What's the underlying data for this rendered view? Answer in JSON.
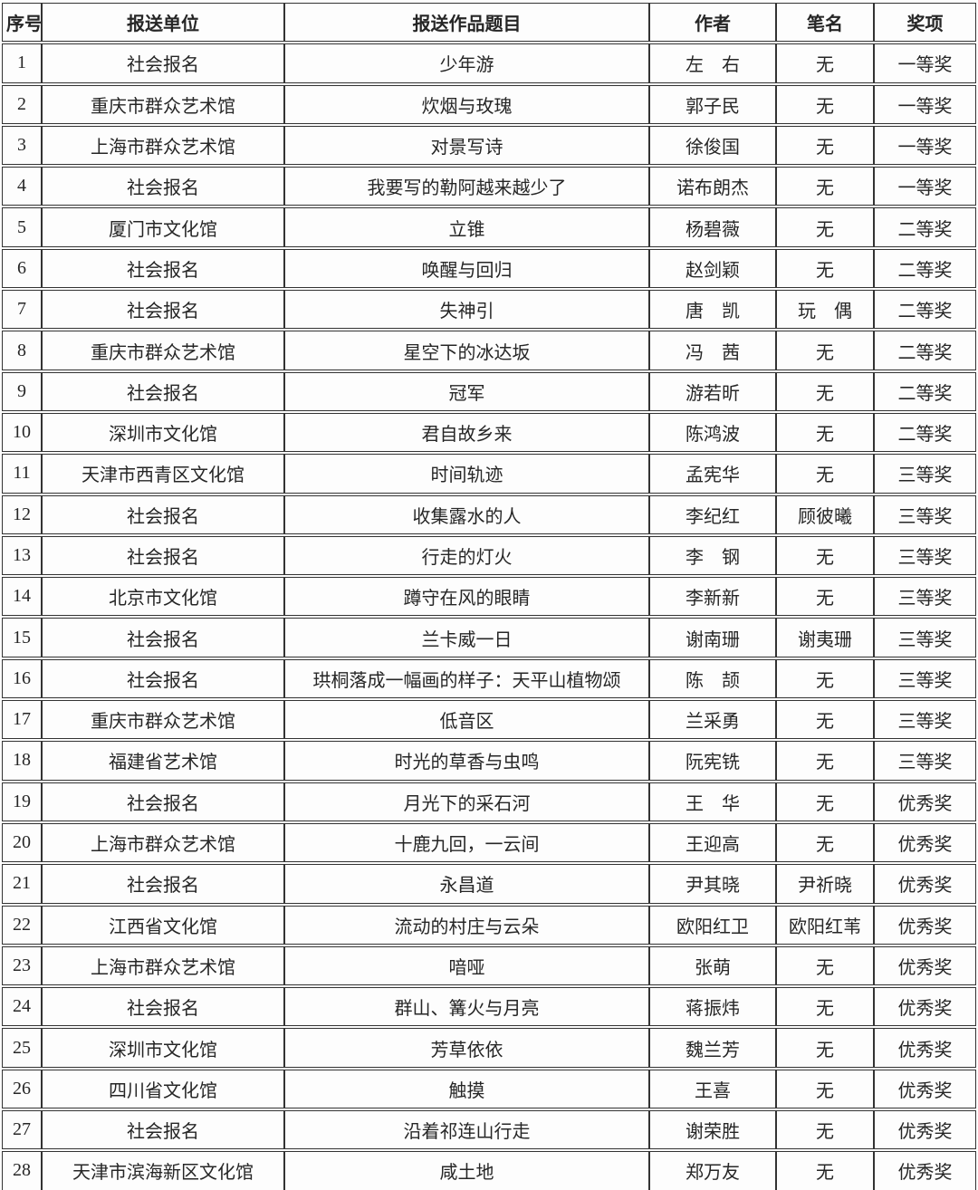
{
  "page": {
    "background": "#fdfdfd",
    "border_color": "#333333",
    "text_color": "#262626"
  },
  "table": {
    "columns": [
      {
        "key": "no",
        "label": "序号"
      },
      {
        "key": "org",
        "label": "报送单位"
      },
      {
        "key": "title",
        "label": "报送作品题目"
      },
      {
        "key": "author",
        "label": "作者"
      },
      {
        "key": "pen",
        "label": "笔名"
      },
      {
        "key": "award",
        "label": "奖项"
      }
    ],
    "rows": [
      {
        "no": "1",
        "org": "社会报名",
        "title": "少年游",
        "author": "左　右",
        "pen": "无",
        "award": "一等奖"
      },
      {
        "no": "2",
        "org": "重庆市群众艺术馆",
        "title": "炊烟与玫瑰",
        "author": "郭子民",
        "pen": "无",
        "award": "一等奖"
      },
      {
        "no": "3",
        "org": "上海市群众艺术馆",
        "title": "对景写诗",
        "author": "徐俊国",
        "pen": "无",
        "award": "一等奖"
      },
      {
        "no": "4",
        "org": "社会报名",
        "title": "我要写的勒阿越来越少了",
        "author": "诺布朗杰",
        "pen": "无",
        "award": "一等奖"
      },
      {
        "no": "5",
        "org": "厦门市文化馆",
        "title": "立锥",
        "author": "杨碧薇",
        "pen": "无",
        "award": "二等奖"
      },
      {
        "no": "6",
        "org": "社会报名",
        "title": "唤醒与回归",
        "author": "赵剑颖",
        "pen": "无",
        "award": "二等奖"
      },
      {
        "no": "7",
        "org": "社会报名",
        "title": "失神引",
        "author": "唐　凯",
        "pen": "玩　偶",
        "award": "二等奖"
      },
      {
        "no": "8",
        "org": "重庆市群众艺术馆",
        "title": "星空下的冰达坂",
        "author": "冯　茜",
        "pen": "无",
        "award": "二等奖"
      },
      {
        "no": "9",
        "org": "社会报名",
        "title": "冠军",
        "author": "游若昕",
        "pen": "无",
        "award": "二等奖"
      },
      {
        "no": "10",
        "org": "深圳市文化馆",
        "title": "君自故乡来",
        "author": "陈鸿波",
        "pen": "无",
        "award": "二等奖"
      },
      {
        "no": "11",
        "org": "天津市西青区文化馆",
        "title": "时间轨迹",
        "author": "孟宪华",
        "pen": "无",
        "award": "三等奖"
      },
      {
        "no": "12",
        "org": "社会报名",
        "title": "收集露水的人",
        "author": "李纪红",
        "pen": "顾彼曦",
        "award": "三等奖"
      },
      {
        "no": "13",
        "org": "社会报名",
        "title": "行走的灯火",
        "author": "李　钢",
        "pen": "无",
        "award": "三等奖"
      },
      {
        "no": "14",
        "org": "北京市文化馆",
        "title": "蹲守在风的眼睛",
        "author": "李新新",
        "pen": "无",
        "award": "三等奖"
      },
      {
        "no": "15",
        "org": "社会报名",
        "title": "兰卡威一日",
        "author": "谢南珊",
        "pen": "谢夷珊",
        "award": "三等奖"
      },
      {
        "no": "16",
        "org": "社会报名",
        "title": "珙桐落成一幅画的样子：天平山植物颂",
        "author": "陈　颉",
        "pen": "无",
        "award": "三等奖"
      },
      {
        "no": "17",
        "org": "重庆市群众艺术馆",
        "title": "低音区",
        "author": "兰采勇",
        "pen": "无",
        "award": "三等奖"
      },
      {
        "no": "18",
        "org": "福建省艺术馆",
        "title": "时光的草香与虫鸣",
        "author": "阮宪铣",
        "pen": "无",
        "award": "三等奖"
      },
      {
        "no": "19",
        "org": "社会报名",
        "title": "月光下的采石河",
        "author": "王　华",
        "pen": "无",
        "award": "优秀奖"
      },
      {
        "no": "20",
        "org": "上海市群众艺术馆",
        "title": "十鹿九回，一云间",
        "author": "王迎高",
        "pen": "无",
        "award": "优秀奖"
      },
      {
        "no": "21",
        "org": "社会报名",
        "title": "永昌道",
        "author": "尹其晓",
        "pen": "尹祈晓",
        "award": "优秀奖"
      },
      {
        "no": "22",
        "org": "江西省文化馆",
        "title": "流动的村庄与云朵",
        "author": "欧阳红卫",
        "pen": "欧阳红苇",
        "award": "优秀奖"
      },
      {
        "no": "23",
        "org": "上海市群众艺术馆",
        "title": "喑哑",
        "author": "张萌",
        "pen": "无",
        "award": "优秀奖"
      },
      {
        "no": "24",
        "org": "社会报名",
        "title": "群山、篝火与月亮",
        "author": "蒋振炜",
        "pen": "无",
        "award": "优秀奖"
      },
      {
        "no": "25",
        "org": "深圳市文化馆",
        "title": "芳草依依",
        "author": "魏兰芳",
        "pen": "无",
        "award": "优秀奖"
      },
      {
        "no": "26",
        "org": "四川省文化馆",
        "title": "触摸",
        "author": "王喜",
        "pen": "无",
        "award": "优秀奖"
      },
      {
        "no": "27",
        "org": "社会报名",
        "title": "沿着祁连山行走",
        "author": "谢荣胜",
        "pen": "无",
        "award": "优秀奖"
      },
      {
        "no": "28",
        "org": "天津市滨海新区文化馆",
        "title": "咸土地",
        "author": "郑万友",
        "pen": "无",
        "award": "优秀奖"
      }
    ]
  }
}
